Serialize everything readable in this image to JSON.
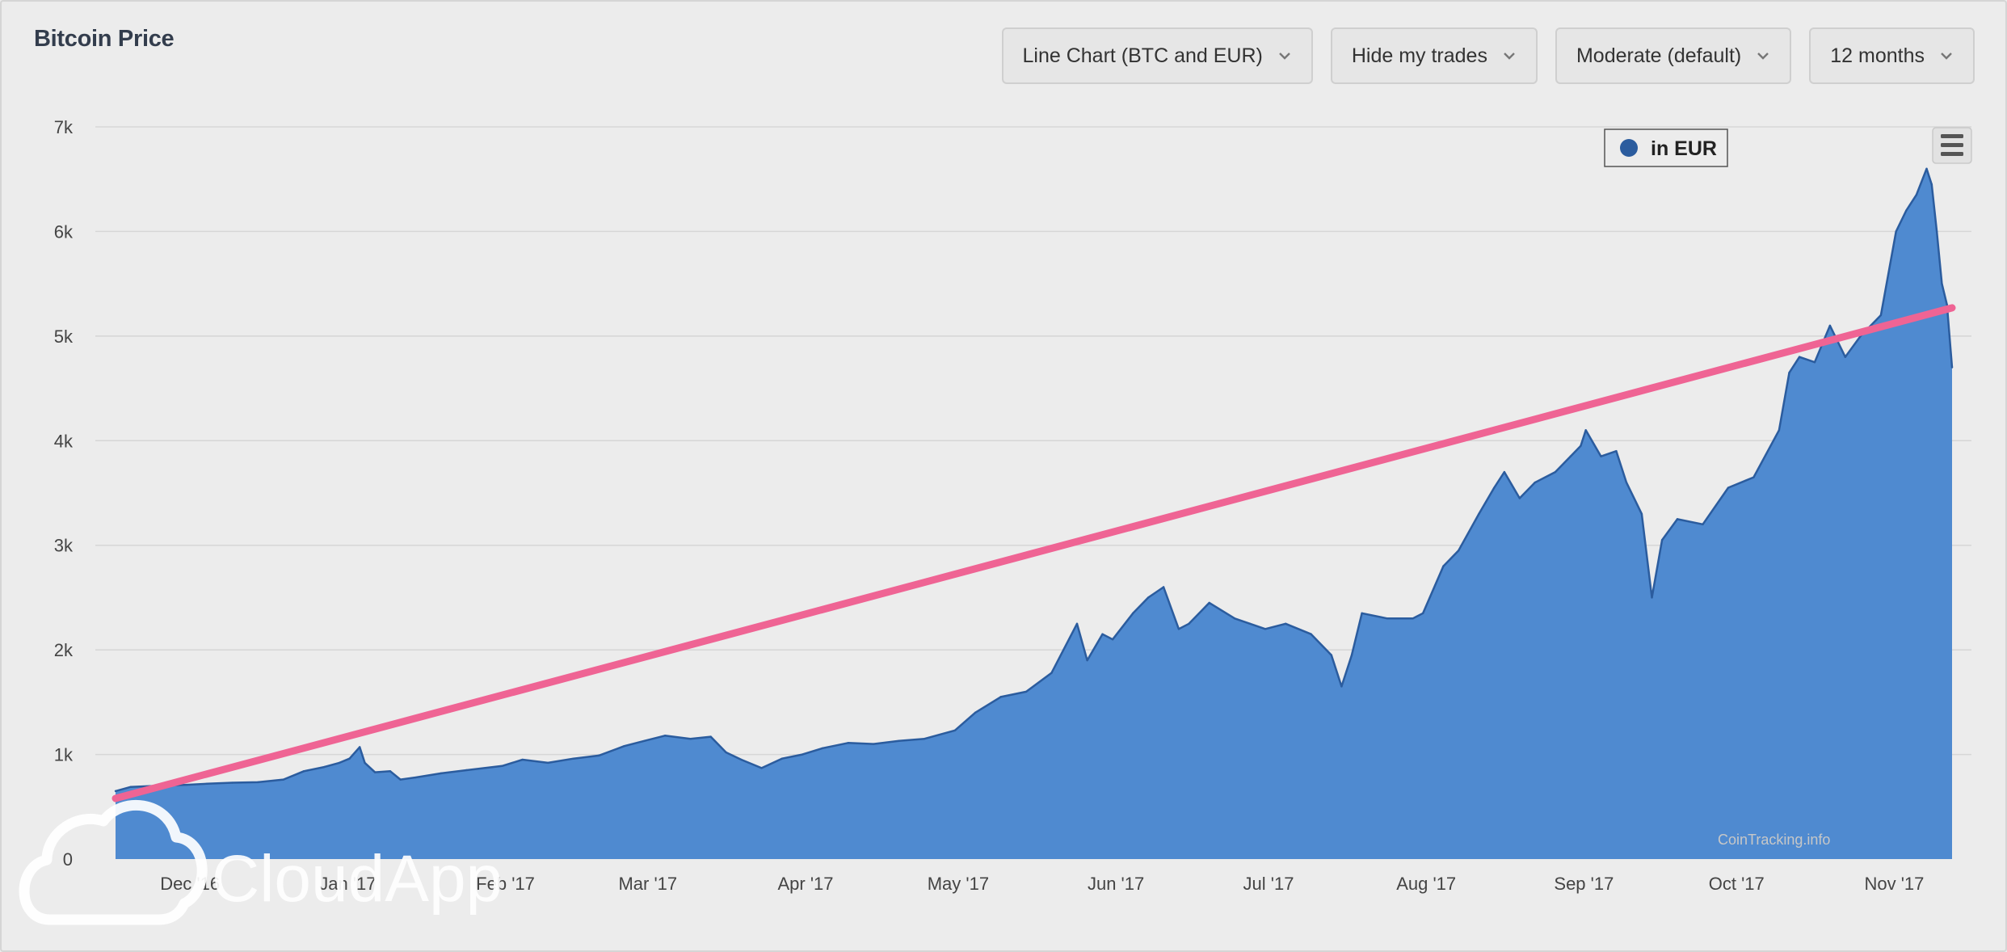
{
  "page": {
    "title": "Bitcoin Price"
  },
  "toolbar": {
    "chart_type": "Line Chart (BTC and EUR)",
    "trades": "Hide my trades",
    "smoothing": "Moderate (default)",
    "range": "12 months"
  },
  "watermark": {
    "text": "CloudApp"
  },
  "chart_data": {
    "type": "area",
    "title": "Bitcoin Price",
    "xlabel": "",
    "ylabel": "",
    "ylim": [
      0,
      7000
    ],
    "x_start": "2016-11-17",
    "x_end": "2017-11-13",
    "x_ticks": [
      {
        "date": "2016-12-01",
        "label": "Dec '16"
      },
      {
        "date": "2017-01-01",
        "label": "Jan '17"
      },
      {
        "date": "2017-02-01",
        "label": "Feb '17"
      },
      {
        "date": "2017-03-01",
        "label": "Mar '17"
      },
      {
        "date": "2017-04-01",
        "label": "Apr '17"
      },
      {
        "date": "2017-05-01",
        "label": "May '17"
      },
      {
        "date": "2017-06-01",
        "label": "Jun '17"
      },
      {
        "date": "2017-07-01",
        "label": "Jul '17"
      },
      {
        "date": "2017-08-01",
        "label": "Aug '17"
      },
      {
        "date": "2017-09-01",
        "label": "Sep '17"
      },
      {
        "date": "2017-10-01",
        "label": "Oct '17"
      },
      {
        "date": "2017-11-01",
        "label": "Nov '17"
      }
    ],
    "y_ticks": [
      {
        "value": 0,
        "label": "0"
      },
      {
        "value": 1000,
        "label": "1k"
      },
      {
        "value": 2000,
        "label": "2k"
      },
      {
        "value": 3000,
        "label": "3k"
      },
      {
        "value": 4000,
        "label": "4k"
      },
      {
        "value": 5000,
        "label": "5k"
      },
      {
        "value": 6000,
        "label": "6k"
      },
      {
        "value": 7000,
        "label": "7k"
      }
    ],
    "grid": true,
    "legend": {
      "position": "top-right",
      "entries": [
        "in EUR"
      ]
    },
    "colors": {
      "series": "#4f8ad0",
      "series_line": "#2b5c9e",
      "trendline": "#ef6494"
    },
    "credit": "CoinTracking.info",
    "series": [
      {
        "name": "in EUR",
        "points": [
          [
            "2016-11-17",
            650
          ],
          [
            "2016-11-20",
            690
          ],
          [
            "2016-11-25",
            700
          ],
          [
            "2016-12-01",
            710
          ],
          [
            "2016-12-05",
            720
          ],
          [
            "2016-12-10",
            730
          ],
          [
            "2016-12-15",
            735
          ],
          [
            "2016-12-20",
            760
          ],
          [
            "2016-12-24",
            840
          ],
          [
            "2016-12-28",
            880
          ],
          [
            "2016-12-31",
            920
          ],
          [
            "2017-01-02",
            960
          ],
          [
            "2017-01-04",
            1070
          ],
          [
            "2017-01-05",
            920
          ],
          [
            "2017-01-07",
            830
          ],
          [
            "2017-01-10",
            840
          ],
          [
            "2017-01-12",
            760
          ],
          [
            "2017-01-15",
            780
          ],
          [
            "2017-01-20",
            820
          ],
          [
            "2017-01-25",
            850
          ],
          [
            "2017-02-01",
            890
          ],
          [
            "2017-02-05",
            950
          ],
          [
            "2017-02-10",
            920
          ],
          [
            "2017-02-15",
            960
          ],
          [
            "2017-02-20",
            990
          ],
          [
            "2017-02-25",
            1080
          ],
          [
            "2017-03-01",
            1130
          ],
          [
            "2017-03-05",
            1180
          ],
          [
            "2017-03-10",
            1150
          ],
          [
            "2017-03-14",
            1170
          ],
          [
            "2017-03-17",
            1020
          ],
          [
            "2017-03-20",
            950
          ],
          [
            "2017-03-24",
            870
          ],
          [
            "2017-03-28",
            960
          ],
          [
            "2017-04-01",
            1000
          ],
          [
            "2017-04-05",
            1060
          ],
          [
            "2017-04-10",
            1110
          ],
          [
            "2017-04-15",
            1100
          ],
          [
            "2017-04-20",
            1130
          ],
          [
            "2017-04-25",
            1150
          ],
          [
            "2017-05-01",
            1230
          ],
          [
            "2017-05-05",
            1400
          ],
          [
            "2017-05-10",
            1550
          ],
          [
            "2017-05-15",
            1600
          ],
          [
            "2017-05-20",
            1780
          ],
          [
            "2017-05-25",
            2250
          ],
          [
            "2017-05-27",
            1900
          ],
          [
            "2017-05-30",
            2150
          ],
          [
            "2017-06-01",
            2100
          ],
          [
            "2017-06-05",
            2350
          ],
          [
            "2017-06-08",
            2500
          ],
          [
            "2017-06-11",
            2600
          ],
          [
            "2017-06-14",
            2200
          ],
          [
            "2017-06-16",
            2250
          ],
          [
            "2017-06-20",
            2450
          ],
          [
            "2017-06-25",
            2300
          ],
          [
            "2017-06-28",
            2250
          ],
          [
            "2017-07-01",
            2200
          ],
          [
            "2017-07-05",
            2250
          ],
          [
            "2017-07-10",
            2150
          ],
          [
            "2017-07-14",
            1950
          ],
          [
            "2017-07-16",
            1650
          ],
          [
            "2017-07-18",
            1950
          ],
          [
            "2017-07-20",
            2350
          ],
          [
            "2017-07-25",
            2300
          ],
          [
            "2017-07-30",
            2300
          ],
          [
            "2017-08-01",
            2350
          ],
          [
            "2017-08-05",
            2800
          ],
          [
            "2017-08-08",
            2950
          ],
          [
            "2017-08-12",
            3300
          ],
          [
            "2017-08-15",
            3550
          ],
          [
            "2017-08-17",
            3700
          ],
          [
            "2017-08-20",
            3450
          ],
          [
            "2017-08-23",
            3600
          ],
          [
            "2017-08-27",
            3700
          ],
          [
            "2017-08-30",
            3850
          ],
          [
            "2017-09-01",
            3950
          ],
          [
            "2017-09-02",
            4100
          ],
          [
            "2017-09-05",
            3850
          ],
          [
            "2017-09-08",
            3900
          ],
          [
            "2017-09-10",
            3600
          ],
          [
            "2017-09-13",
            3300
          ],
          [
            "2017-09-15",
            2500
          ],
          [
            "2017-09-17",
            3050
          ],
          [
            "2017-09-20",
            3250
          ],
          [
            "2017-09-25",
            3200
          ],
          [
            "2017-09-30",
            3550
          ],
          [
            "2017-10-05",
            3650
          ],
          [
            "2017-10-10",
            4100
          ],
          [
            "2017-10-12",
            4650
          ],
          [
            "2017-10-14",
            4800
          ],
          [
            "2017-10-17",
            4750
          ],
          [
            "2017-10-20",
            5100
          ],
          [
            "2017-10-23",
            4800
          ],
          [
            "2017-10-26",
            5000
          ],
          [
            "2017-10-30",
            5200
          ],
          [
            "2017-11-02",
            6000
          ],
          [
            "2017-11-04",
            6200
          ],
          [
            "2017-11-06",
            6350
          ],
          [
            "2017-11-08",
            6600
          ],
          [
            "2017-11-09",
            6450
          ],
          [
            "2017-11-10",
            6000
          ],
          [
            "2017-11-11",
            5500
          ],
          [
            "2017-11-12",
            5300
          ],
          [
            "2017-11-13",
            4700
          ]
        ]
      }
    ],
    "trendline": [
      [
        "2016-11-17",
        580
      ],
      [
        "2017-11-13",
        5270
      ]
    ]
  }
}
